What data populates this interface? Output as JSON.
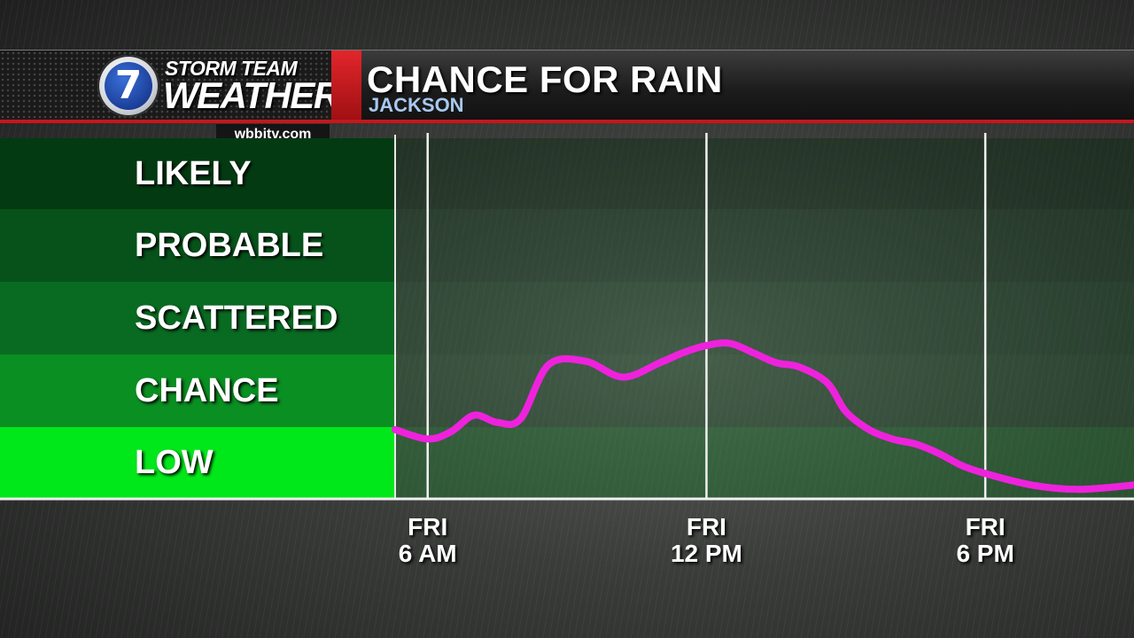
{
  "header": {
    "brand_top": "STORM TEAM",
    "brand_main": "WEATHER",
    "logo_number": "7",
    "site": "wbbjtv.com",
    "title": "CHANCE FOR RAIN",
    "location": "JACKSON"
  },
  "colors": {
    "curve": "#ee22dd",
    "header_red": "#c8161b",
    "low_band": "#00e81a"
  },
  "chart_data": {
    "type": "line",
    "title": "CHANCE FOR RAIN",
    "y_categories": [
      "LOW",
      "CHANCE",
      "SCATTERED",
      "PROBABLE",
      "LIKELY"
    ],
    "ylim": [
      0,
      5
    ],
    "x_ticks": [
      {
        "day": "FRI",
        "time": "6 AM",
        "hour": 6
      },
      {
        "day": "FRI",
        "time": "12 PM",
        "hour": 12
      },
      {
        "day": "FRI",
        "time": "6 PM",
        "hour": 18
      }
    ],
    "xlim": [
      5.3,
      21.2
    ],
    "grid": "vertical lines at tick times",
    "series": [
      {
        "hour": [
          5.3,
          6.0,
          6.5,
          7.0,
          7.5,
          8.0,
          8.6,
          9.4,
          10.2,
          11.0,
          11.5,
          12.0,
          12.5,
          13.0,
          13.5,
          14.0,
          14.6,
          15.0,
          15.5,
          16.0,
          16.5,
          17.0,
          17.5,
          18.0,
          19.0,
          20.0,
          21.2
        ],
        "level": [
          0.95,
          0.82,
          0.92,
          1.15,
          1.05,
          1.1,
          1.85,
          1.9,
          1.68,
          1.88,
          2.02,
          2.12,
          2.15,
          2.02,
          1.88,
          1.82,
          1.6,
          1.2,
          0.95,
          0.82,
          0.75,
          0.62,
          0.45,
          0.34,
          0.18,
          0.12,
          0.18
        ]
      }
    ]
  }
}
